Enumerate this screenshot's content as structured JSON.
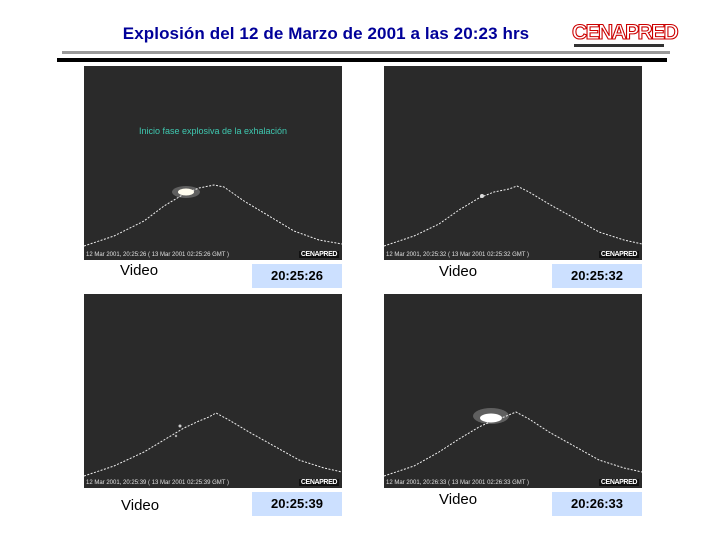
{
  "header": {
    "title": "Explosión del 12 de Marzo de 2001 a las 20:23 hrs",
    "logo_text": "CENAPRED"
  },
  "frames": [
    {
      "overlay_text": "Inicio fase explosiva de la exhalación",
      "timestamp": "12  Mar 2001,  20:25:26 ( 13 Mar 2001  02:25:26  GMT )",
      "watermark": "CENAPRED",
      "caption": "Video",
      "time": "20:25:26"
    },
    {
      "overlay_text": "",
      "timestamp": "12  Mar 2001,  20:25:32 ( 13 Mar 2001  02:25:32  GMT )",
      "watermark": "CENAPRED",
      "caption": "Video",
      "time": "20:25:32"
    },
    {
      "overlay_text": "",
      "timestamp": "12  Mar 2001,  20:25:39 ( 13 Mar 2001  02:25:39  GMT )",
      "watermark": "CENAPRED",
      "caption": "Video",
      "time": "20:25:39"
    },
    {
      "overlay_text": "",
      "timestamp": "12  Mar 2001,  20:26:33 ( 13 Mar 2001  02:26:33  GMT )",
      "watermark": "CENAPRED",
      "caption": "Video",
      "time": "20:26:33"
    }
  ],
  "colors": {
    "title": "#000099",
    "time_box": "#cce0ff",
    "frame_bg": "#2a2a2a"
  }
}
